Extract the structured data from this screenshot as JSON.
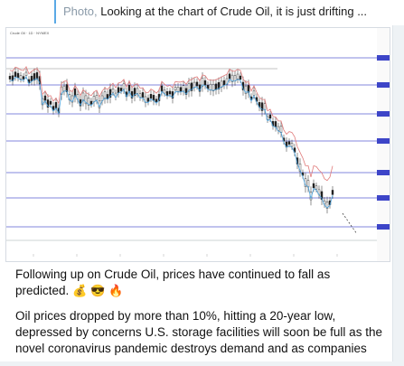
{
  "reply": {
    "media_label": "Photo,",
    "preview_text": "Looking at the chart of Crude Oil, it is just drifting ..."
  },
  "chart": {
    "header_line1": "Crude Oil · 1D · NYMEX",
    "header_line2": "",
    "header_line3": ""
  },
  "message": {
    "paragraph1": "Following up on Crude Oil, prices have continued to fall as predicted.",
    "emojis": [
      "💰",
      "😎",
      "🔥"
    ],
    "paragraph2": "Oil prices dropped by more than 10%, hitting a 20-year low, depressed by concerns U.S. storage facilities will soon be full as the novel coronavirus pandemic destroys demand and as companies"
  },
  "colors": {
    "up_candle": "#ffffff",
    "down_candle": "#222222",
    "ma_fast": "#4aa3df",
    "ma_slow": "#e07b7b",
    "level_line": "#5a5fd0",
    "price_tag": "#3d45c8"
  }
}
